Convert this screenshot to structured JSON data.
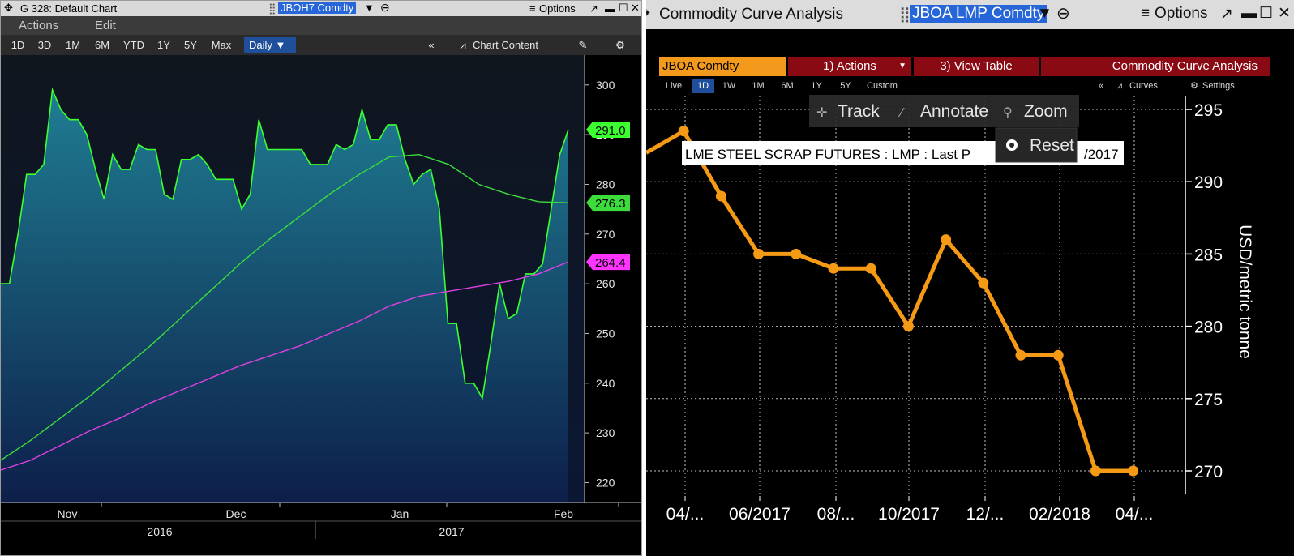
{
  "left": {
    "title": "G 328: Default Chart",
    "ticker": "JBOH7 Comdty",
    "options_label": "Options",
    "menu": [
      "Actions",
      "Edit"
    ],
    "periods": [
      "1D",
      "3D",
      "1M",
      "6M",
      "YTD",
      "1Y",
      "5Y",
      "Max"
    ],
    "frequency": "Daily",
    "chart_content_label": "Chart Content",
    "collapse_label": "«",
    "price_tags": {
      "last": "291.0",
      "ma_green": "276.3",
      "ma_magenta": "264.4"
    },
    "colors": {
      "area": "#1a6e8a",
      "price_line": "#3cff2f",
      "ma_green": "#3cdc3c",
      "ma_magenta": "#e040e0"
    }
  },
  "right": {
    "title": "Commodity Curve Analysis",
    "ticker": "JBOA LMP Comdty",
    "options_label": "Options",
    "security_button": "JBOA Comdty",
    "actions_button": "1) Actions",
    "view_table_button": "3) View Table",
    "function_button": "Commodity Curve Analysis",
    "periods": [
      "Live",
      "1D",
      "1W",
      "1M",
      "6M",
      "1Y",
      "5Y",
      "Custom"
    ],
    "active_period": "1D",
    "collapse_label": "«",
    "curves_label": "Curves",
    "settings_label": "Settings",
    "toolbar": {
      "track": "Track",
      "annotate": "Annotate",
      "zoom": "Zoom",
      "reset": "Reset"
    },
    "tooltip_text": "LME STEEL SCRAP FUTURES : LMP : Last P",
    "tooltip_tail": "/2017",
    "colors": {
      "line": "#f59a14",
      "background": "#000000",
      "grid": "#ffffff"
    }
  },
  "chart_data": [
    {
      "type": "area",
      "title": "",
      "ylim": [
        216,
        306
      ],
      "yticks": [
        220,
        230,
        240,
        250,
        260,
        270,
        280,
        290,
        300
      ],
      "xticks": [
        "Nov",
        "Dec",
        "Jan",
        "Feb"
      ],
      "year_labels": [
        "2016",
        "2017"
      ],
      "grid": false,
      "series": [
        {
          "name": "",
          "kind": "price",
          "values": [
            260,
            260,
            270,
            282,
            282,
            284,
            299,
            295,
            293,
            293,
            290,
            283,
            277,
            286,
            283,
            283,
            288,
            287,
            287,
            278,
            277,
            285,
            285,
            286,
            284,
            281,
            281,
            281,
            275,
            278,
            293,
            287,
            287,
            287,
            287,
            287,
            284,
            284,
            284,
            288,
            287,
            288,
            295,
            289,
            289,
            292,
            292,
            285,
            280,
            282,
            283,
            275,
            252,
            252,
            240,
            240,
            237,
            248,
            260,
            253,
            254,
            262,
            262,
            264,
            275,
            286,
            291
          ]
        },
        {
          "name": "",
          "kind": "moving_average",
          "values": [
            224.5,
            228.5,
            233,
            237.5,
            242.5,
            247.5,
            253,
            258.5,
            264,
            269,
            273.5,
            278,
            282,
            285.5,
            286,
            284,
            280,
            278,
            276.5,
            276.3
          ]
        },
        {
          "name": "",
          "kind": "moving_average",
          "values": [
            222.5,
            224.5,
            227.5,
            230.5,
            233,
            236,
            238.5,
            241,
            243.5,
            245.5,
            247.5,
            250,
            252.5,
            255.5,
            257.5,
            258.5,
            259.5,
            260.5,
            262,
            264.4
          ]
        }
      ]
    },
    {
      "type": "line",
      "title": "",
      "ylabel": "USD/metric tonne",
      "ylim": [
        268.5,
        296
      ],
      "yticks": [
        270,
        275,
        280,
        285,
        290,
        295
      ],
      "xticks": [
        "04/...",
        "06/2017",
        "08/...",
        "10/2017",
        "12/...",
        "02/2018",
        "04/..."
      ],
      "grid": true,
      "series": [
        {
          "name": "",
          "x": [
            "03/2017",
            "04/2017",
            "05/2017",
            "06/2017",
            "07/2017",
            "08/2017",
            "09/2017",
            "10/2017",
            "11/2017",
            "12/2017",
            "01/2018",
            "02/2018",
            "03/2018",
            "04/2018"
          ],
          "values": [
            292,
            293.5,
            289,
            285,
            285,
            284,
            284,
            280,
            286,
            283,
            278,
            278,
            270,
            270
          ]
        }
      ]
    }
  ]
}
